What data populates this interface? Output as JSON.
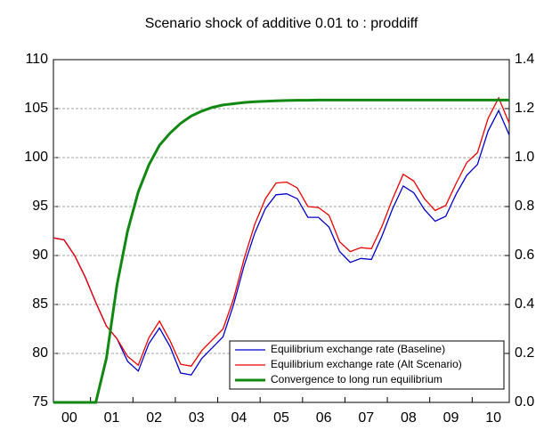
{
  "chart_data": {
    "type": "line",
    "title": "Scenario shock of additive 0.01 to : proddiff",
    "categories": [
      "00",
      null,
      null,
      null,
      "01",
      null,
      null,
      null,
      "02",
      null,
      null,
      null,
      "03",
      null,
      null,
      null,
      "04",
      null,
      null,
      null,
      "05",
      null,
      null,
      null,
      "06",
      null,
      null,
      null,
      "07",
      null,
      null,
      null,
      "08",
      null,
      null,
      null,
      "09",
      null,
      null,
      null,
      "10",
      null,
      null,
      null
    ],
    "series": [
      {
        "name": "Equilibrium exchange rate (Baseline)",
        "color": "#0000cc",
        "axis": "y",
        "values": [
          91.8,
          91.6,
          90,
          87.8,
          85.2,
          82.8,
          81.5,
          79.2,
          78.2,
          81,
          82.6,
          80.7,
          78,
          77.8,
          79.5,
          80.6,
          81.7,
          85,
          89,
          92.3,
          94.8,
          96.2,
          96.3,
          95.8,
          93.9,
          93.9,
          92.9,
          90.4,
          89.3,
          89.7,
          89.6,
          92,
          94.8,
          97.1,
          96.4,
          94.7,
          93.5,
          94,
          96.3,
          98.2,
          99.3,
          102.7,
          104.8,
          102.3
        ]
      },
      {
        "name": "Equilibrium exchange rate (Alt Scenario)",
        "color": "#ee0000",
        "axis": "y",
        "values": [
          91.8,
          91.6,
          90,
          87.8,
          85.2,
          82.8,
          81.5,
          79.7,
          78.8,
          81.6,
          83.3,
          81.3,
          78.9,
          78.7,
          80.3,
          81.4,
          82.5,
          85.6,
          89.7,
          93.2,
          95.8,
          97.4,
          97.5,
          96.9,
          95,
          94.9,
          94.1,
          91.4,
          90.4,
          90.8,
          90.7,
          93,
          95.8,
          98.3,
          97.6,
          95.8,
          94.6,
          95.1,
          97.4,
          99.5,
          100.5,
          104,
          106.1,
          103.5
        ]
      },
      {
        "name": "Convergence to long run equilibrium",
        "color": "#118811",
        "axis": "y2",
        "values": [
          0,
          0,
          0,
          0,
          0,
          0.18,
          0.48,
          0.7,
          0.86,
          0.97,
          1.05,
          1.1,
          1.14,
          1.17,
          1.19,
          1.205,
          1.215,
          1.22,
          1.225,
          1.228,
          1.23,
          1.232,
          1.233,
          1.234,
          1.234,
          1.235,
          1.235,
          1.235,
          1.235,
          1.235,
          1.235,
          1.235,
          1.235,
          1.235,
          1.235,
          1.235,
          1.235,
          1.235,
          1.235,
          1.235,
          1.235,
          1.235,
          1.235,
          1.235
        ]
      }
    ],
    "ylim": [
      75,
      110
    ],
    "yticks": [
      75,
      80,
      85,
      90,
      95,
      100,
      105,
      110
    ],
    "y2lim": [
      0,
      1.4
    ],
    "y2ticks": [
      {
        "value": 0,
        "label": "0.0"
      },
      0.2,
      0.4,
      0.6,
      0.8,
      {
        "value": 1,
        "label": "1.0"
      },
      1.2,
      1.4
    ],
    "grid": true,
    "legend": "lower right"
  }
}
